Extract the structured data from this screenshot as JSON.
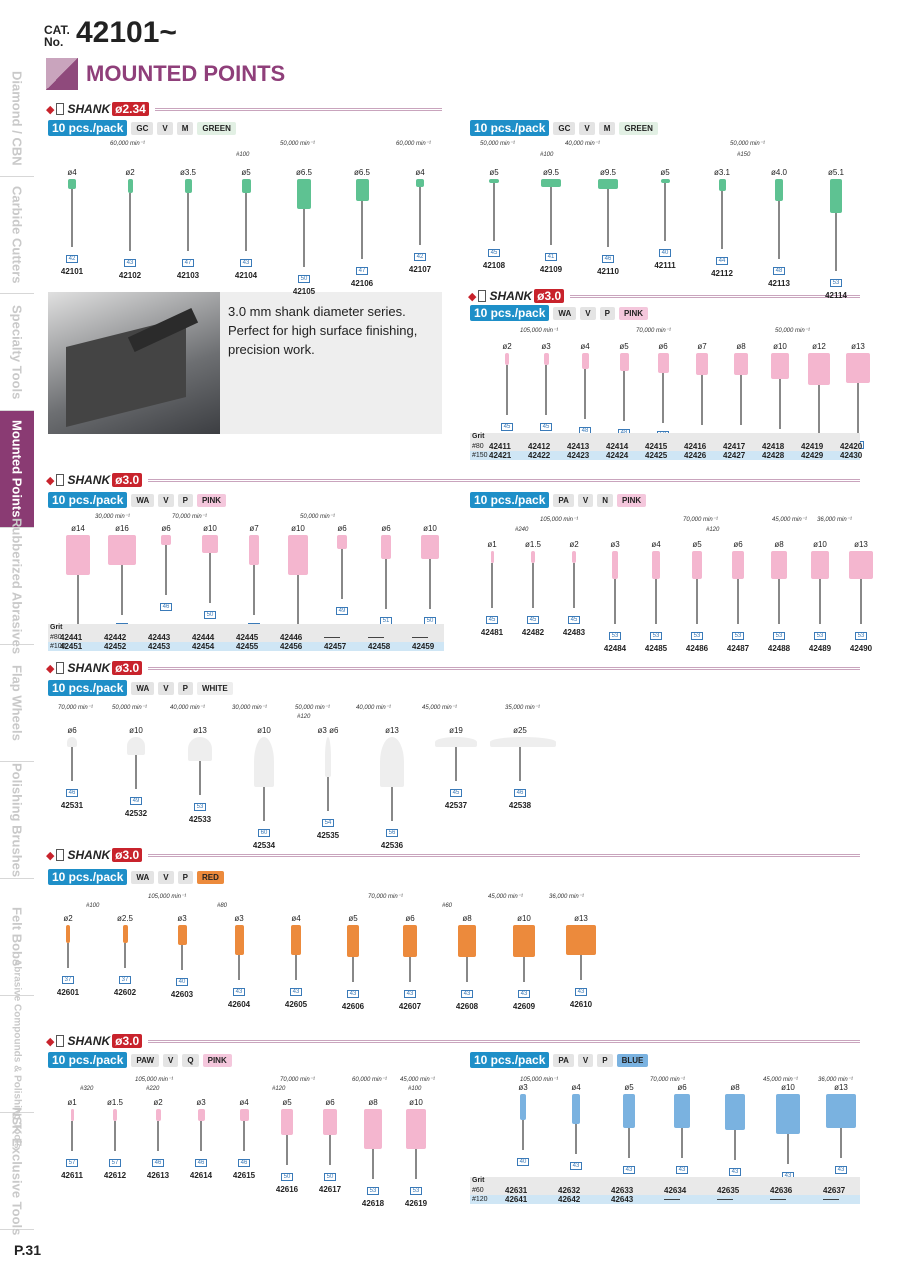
{
  "header": {
    "cat_label": "CAT.\nNo.",
    "cat_no": "42101~",
    "title": "MOUNTED POINTS",
    "page": "P.31"
  },
  "sidebar": [
    "Diamond / CBN",
    "Carbide Cutters",
    "Specialty Tools",
    "Mounted Points",
    "Rubberized Abrasives",
    "Flap Wheels",
    "Polishing Brushes",
    "Felt Bobs",
    "Abrasive Compounds & Polishing Tools",
    "NSK Exclusive Tools"
  ],
  "banners": {
    "shank": "SHANK",
    "s234": "ø2.34",
    "s30": "ø3.0"
  },
  "pack": "10 pcs./pack",
  "s1": {
    "tags": [
      "GC",
      "V",
      "M",
      "GREEN"
    ],
    "speeds": [
      "60,000 min⁻¹",
      "50,000 min⁻¹",
      "60,000 min⁻¹"
    ],
    "grit": "#100",
    "items": [
      {
        "d": "ø4",
        "box": "42",
        "code": "42101"
      },
      {
        "d": "ø2",
        "box": "43",
        "code": "42102"
      },
      {
        "d": "ø3.5",
        "box": "47",
        "code": "42103"
      },
      {
        "d": "ø5",
        "box": "43",
        "code": "42104"
      },
      {
        "d": "ø6.5",
        "box": "50",
        "code": "42105"
      },
      {
        "d": "ø6.5",
        "box": "47",
        "code": "42106"
      },
      {
        "d": "ø4",
        "box": "42",
        "code": "42107"
      }
    ]
  },
  "s2": {
    "tags": [
      "GC",
      "V",
      "M",
      "GREEN"
    ],
    "speeds": [
      "50,000 min⁻¹",
      "40,000 min⁻¹",
      "50,000 min⁻¹"
    ],
    "grits": [
      "#100",
      "#150"
    ],
    "items": [
      {
        "d": "ø5",
        "box": "45",
        "code": "42108"
      },
      {
        "d": "ø9.5",
        "box": "41",
        "code": "42109"
      },
      {
        "d": "ø9.5",
        "box": "46",
        "code": "42110"
      },
      {
        "d": "ø5",
        "box": "40",
        "code": "42111"
      },
      {
        "d": "ø3.1",
        "box": "44",
        "code": "42112"
      },
      {
        "d": "ø4.0",
        "box": "48",
        "code": "42113"
      },
      {
        "d": "ø5.1",
        "box": "53",
        "code": "42114"
      }
    ]
  },
  "photo_text": "3.0 mm shank diameter series. Perfect for high surface finishing, precision work.",
  "s3": {
    "tags": [
      "WA",
      "V",
      "P",
      "PINK"
    ],
    "speeds": [
      "105,000 min⁻¹",
      "70,000 min⁻¹",
      "50,000 min⁻¹"
    ],
    "grit_label": "Grit",
    "items": [
      {
        "d": "ø2",
        "box": "45",
        "a": "42411",
        "b": "42421"
      },
      {
        "d": "ø3",
        "box": "45",
        "a": "42412",
        "b": "42422"
      },
      {
        "d": "ø4",
        "box": "48",
        "a": "42413",
        "b": "42423"
      },
      {
        "d": "ø5",
        "box": "48",
        "a": "42414",
        "b": "42424"
      },
      {
        "d": "ø6",
        "box": "50",
        "a": "42415",
        "b": "42425"
      },
      {
        "d": "ø7",
        "box": "50",
        "a": "42416",
        "b": "42426"
      },
      {
        "d": "ø8",
        "box": "50",
        "a": "42417",
        "b": "42427"
      },
      {
        "d": "ø10",
        "box": "50",
        "a": "42418",
        "b": "42428"
      },
      {
        "d": "ø12",
        "box": "52",
        "a": "42419",
        "b": "42429"
      },
      {
        "d": "ø13",
        "box": "50",
        "a": "42420",
        "b": "42430"
      }
    ],
    "g1": "#80",
    "g2": "#150"
  },
  "s4": {
    "tags": [
      "WA",
      "V",
      "P",
      "PINK"
    ],
    "speeds": [
      "30,000 min⁻¹",
      "70,000 min⁻¹",
      "50,000 min⁻¹"
    ],
    "items": [
      {
        "d": "ø14",
        "box": "54",
        "a": "42441",
        "b": "42451"
      },
      {
        "d": "ø16",
        "box": "50",
        "a": "42442",
        "b": "42452"
      },
      {
        "d": "ø6",
        "box": "46",
        "a": "42443",
        "b": "42453"
      },
      {
        "d": "ø10",
        "box": "50",
        "a": "42444",
        "b": "42454"
      },
      {
        "d": "ø7",
        "box": "56",
        "a": "42445",
        "b": "42455"
      },
      {
        "d": "ø10",
        "box": "60",
        "a": "42446",
        "b": "42456"
      },
      {
        "d": "ø6",
        "box": "49",
        "a": "——",
        "b": "42457"
      },
      {
        "d": "ø6",
        "box": "51",
        "a": "——",
        "b": "42458"
      },
      {
        "d": "ø10",
        "box": "50",
        "a": "——",
        "b": "42459"
      }
    ],
    "g1": "#80",
    "g2": "#100"
  },
  "s5": {
    "tags": [
      "PA",
      "V",
      "N",
      "PINK"
    ],
    "speeds": [
      "105,000 min⁻¹",
      "70,000 min⁻¹",
      "45,000 min⁻¹",
      "36,000 min⁻¹"
    ],
    "grits": [
      "#240",
      "#120"
    ],
    "items": [
      {
        "d": "ø1",
        "box": "45",
        "code": "42481"
      },
      {
        "d": "ø1.5",
        "box": "45",
        "code": "42482"
      },
      {
        "d": "ø2",
        "box": "45",
        "code": "42483"
      },
      {
        "d": "ø3",
        "box": "53",
        "code": "42484"
      },
      {
        "d": "ø4",
        "box": "53",
        "code": "42485"
      },
      {
        "d": "ø5",
        "box": "53",
        "code": "42486"
      },
      {
        "d": "ø6",
        "box": "53",
        "code": "42487"
      },
      {
        "d": "ø8",
        "box": "53",
        "code": "42488"
      },
      {
        "d": "ø10",
        "box": "53",
        "code": "42489"
      },
      {
        "d": "ø13",
        "box": "53",
        "code": "42490"
      }
    ]
  },
  "s6": {
    "tags": [
      "WA",
      "V",
      "P",
      "WHITE"
    ],
    "speeds": [
      "70,000 min⁻¹",
      "50,000 min⁻¹",
      "40,000 min⁻¹",
      "30,000 min⁻¹",
      "50,000 min⁻¹",
      "40,000 min⁻¹",
      "45,000 min⁻¹",
      "35,000 min⁻¹"
    ],
    "grit": "#120",
    "items": [
      {
        "d": "ø6",
        "box": "46",
        "code": "42531"
      },
      {
        "d": "ø10",
        "box": "49",
        "code": "42532"
      },
      {
        "d": "ø13",
        "box": "53",
        "code": "42533"
      },
      {
        "d": "ø10",
        "box": "60",
        "code": "42534"
      },
      {
        "d": "ø3 ø6",
        "box": "54",
        "code": "42535"
      },
      {
        "d": "ø13",
        "box": "56",
        "code": "42536"
      },
      {
        "d": "ø19",
        "box": "45",
        "code": "42537"
      },
      {
        "d": "ø25",
        "box": "46",
        "code": "42538"
      }
    ]
  },
  "s7": {
    "tags": [
      "WA",
      "V",
      "P",
      "RED"
    ],
    "speeds": [
      "105,000 min⁻¹",
      "70,000 min⁻¹",
      "45,000 min⁻¹",
      "36,000 min⁻¹"
    ],
    "grits": [
      "#100",
      "#80",
      "#60"
    ],
    "items": [
      {
        "d": "ø2",
        "box": "37",
        "code": "42601"
      },
      {
        "d": "ø2.5",
        "box": "37",
        "code": "42602"
      },
      {
        "d": "ø3",
        "box": "40",
        "code": "42603"
      },
      {
        "d": "ø3",
        "box": "43",
        "code": "42604"
      },
      {
        "d": "ø4",
        "box": "43",
        "code": "42605"
      },
      {
        "d": "ø5",
        "box": "43",
        "code": "42606"
      },
      {
        "d": "ø6",
        "box": "43",
        "code": "42607"
      },
      {
        "d": "ø8",
        "box": "43",
        "code": "42608"
      },
      {
        "d": "ø10",
        "box": "43",
        "code": "42609"
      },
      {
        "d": "ø13",
        "box": "43",
        "code": "42610"
      }
    ]
  },
  "s8": {
    "tags": [
      "PAW",
      "V",
      "Q",
      "PINK"
    ],
    "speeds": [
      "105,000 min⁻¹",
      "70,000 min⁻¹",
      "60,000 min⁻¹",
      "45,000 min⁻¹"
    ],
    "grits": [
      "#320",
      "#220",
      "#120",
      "#100"
    ],
    "items": [
      {
        "d": "ø1",
        "box": "57",
        "code": "42611"
      },
      {
        "d": "ø1.5",
        "box": "57",
        "code": "42612"
      },
      {
        "d": "ø2",
        "box": "46",
        "code": "42613"
      },
      {
        "d": "ø3",
        "box": "46",
        "code": "42614"
      },
      {
        "d": "ø4",
        "box": "46",
        "code": "42615"
      },
      {
        "d": "ø5",
        "box": "50",
        "code": "42616"
      },
      {
        "d": "ø6",
        "box": "50",
        "code": "42617"
      },
      {
        "d": "ø8",
        "box": "53",
        "code": "42618"
      },
      {
        "d": "ø10",
        "box": "53",
        "code": "42619"
      }
    ]
  },
  "s9": {
    "tags": [
      "PA",
      "V",
      "P",
      "BLUE"
    ],
    "speeds": [
      "105,000 min⁻¹",
      "70,000 min⁻¹",
      "45,000 min⁻¹",
      "36,000 min⁻¹"
    ],
    "items": [
      {
        "d": "ø3",
        "box": "40",
        "a": "42631",
        "b": "42641"
      },
      {
        "d": "ø4",
        "box": "43",
        "a": "42632",
        "b": "42642"
      },
      {
        "d": "ø5",
        "box": "43",
        "a": "42633",
        "b": "42643"
      },
      {
        "d": "ø6",
        "box": "43",
        "a": "42634",
        "b": "——"
      },
      {
        "d": "ø8",
        "box": "43",
        "a": "42635",
        "b": "——"
      },
      {
        "d": "ø10",
        "box": "43",
        "a": "42636",
        "b": "——"
      },
      {
        "d": "ø13",
        "box": "43",
        "a": "42637",
        "b": "——"
      }
    ],
    "g1": "#60",
    "g2": "#120"
  }
}
